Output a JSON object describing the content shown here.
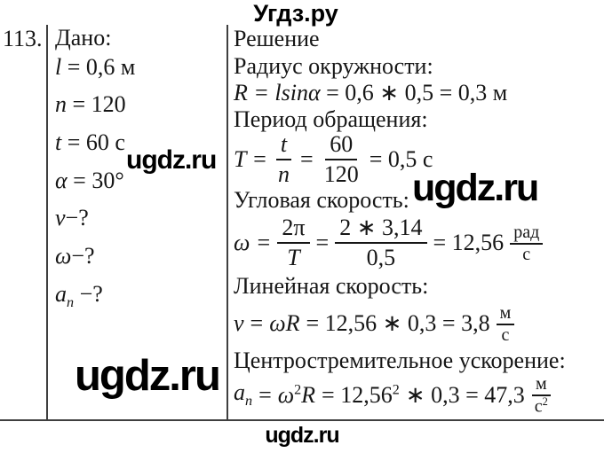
{
  "colors": {
    "background": "#ffffff",
    "ink": "#161616",
    "watermark": "#000000",
    "table_border": "#3f3f3f"
  },
  "header": {
    "site_title": "Угдз.ру"
  },
  "problem": {
    "number": "113."
  },
  "given": {
    "label": "Дано:",
    "items": [
      {
        "var": "l",
        "rest": " = 0,6 м"
      },
      {
        "var": "n",
        "rest": " = 120"
      },
      {
        "var": "t",
        "rest": " = 60 с"
      },
      {
        "var": "α",
        "rest": " = 30°"
      },
      {
        "var": "v",
        "rest": "−?"
      },
      {
        "var": "ω",
        "rest": "−?"
      },
      {
        "var": "a",
        "sub": "n",
        "rest": " −?"
      }
    ]
  },
  "solution": {
    "header": "Решение",
    "radius_label": "Радиус окружности:",
    "radius": {
      "math": "R = lsinα",
      "rest": " = 0,6 ∗ 0,5 = 0,3 м"
    },
    "period_label": "Период обращения:",
    "period": {
      "pre": "T =",
      "f1n": "t",
      "f1d": "n",
      "mid": "=",
      "f2n": "60",
      "f2d": "120",
      "post": "= 0,5 с"
    },
    "angular_label": "Угловая скорость:",
    "angular": {
      "pre": "ω =",
      "f1n": "2π",
      "f1d": "T",
      "mid": "=",
      "f2n": "2 ∗ 3,14",
      "f2d": "0,5",
      "post": "= 12,56",
      "unit_num": "рад",
      "unit_den": "с"
    },
    "linear_label": "Линейная скорость:",
    "linear": {
      "var": "v",
      "eq": "=",
      "vars": "ωR",
      "rest": "= 12,56 ∗ 0,3 = 3,8",
      "unit_num": "м",
      "unit_den": "с"
    },
    "centripetal_label": "Центростремительное ускорение:",
    "centripetal": {
      "var": "a",
      "var_sub": "n",
      "eq": "=",
      "omega": "ω",
      "sup1": "2",
      "r": "R",
      "rest1": "= 12,56",
      "sup2": "2",
      "rest2": "∗ 0,3 = 47,3",
      "unit_num": "м",
      "unit_den": "с",
      "unit_den_sup": "2"
    }
  },
  "watermarks": {
    "inline1": "ugdz.ru",
    "inline2": "ugdz.ru",
    "inline3": "ugdz.ru",
    "footer": "ugdz.ru"
  }
}
